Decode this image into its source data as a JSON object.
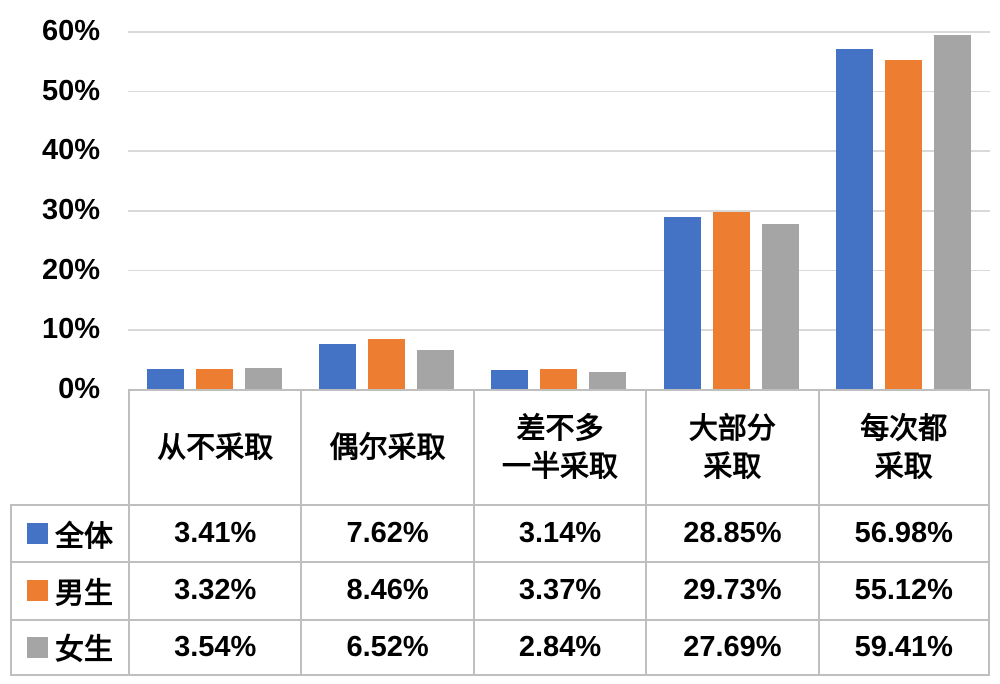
{
  "chart_data": {
    "type": "bar",
    "title": "",
    "categories": [
      "从不采取",
      "偶尔采取",
      "差不多一半采取",
      "大部分采取",
      "每次都采取"
    ],
    "category_label_lines": [
      [
        "从不采取"
      ],
      [
        "偶尔采取"
      ],
      [
        "差不多",
        "一半采取"
      ],
      [
        "大部分",
        "采取"
      ],
      [
        "每次都",
        "采取"
      ]
    ],
    "series": [
      {
        "name": "全体",
        "color": "#4472C4",
        "values": [
          3.41,
          7.62,
          3.14,
          28.85,
          56.98
        ],
        "value_labels": [
          "3.41%",
          "7.62%",
          "3.14%",
          "28.85%",
          "56.98%"
        ]
      },
      {
        "name": "男生",
        "color": "#ED7D31",
        "values": [
          3.32,
          8.46,
          3.37,
          29.73,
          55.12
        ],
        "value_labels": [
          "3.32%",
          "8.46%",
          "3.37%",
          "29.73%",
          "55.12%"
        ]
      },
      {
        "name": "女生",
        "color": "#A5A5A5",
        "values": [
          3.54,
          6.52,
          2.84,
          27.69,
          59.41
        ],
        "value_labels": [
          "3.54%",
          "6.52%",
          "2.84%",
          "27.69%",
          "59.41%"
        ]
      }
    ],
    "y_axis": {
      "min": 0,
      "max": 60,
      "step": 10,
      "tick_labels": [
        "0%",
        "10%",
        "20%",
        "30%",
        "40%",
        "50%",
        "60%"
      ]
    },
    "grid": true,
    "legend_position": "data-table-left-column",
    "data_table_shown": true
  },
  "colors": {
    "gridline": "#d9d9d9",
    "table_border": "#bfbfbf",
    "background": "#ffffff",
    "text": "#000000"
  }
}
